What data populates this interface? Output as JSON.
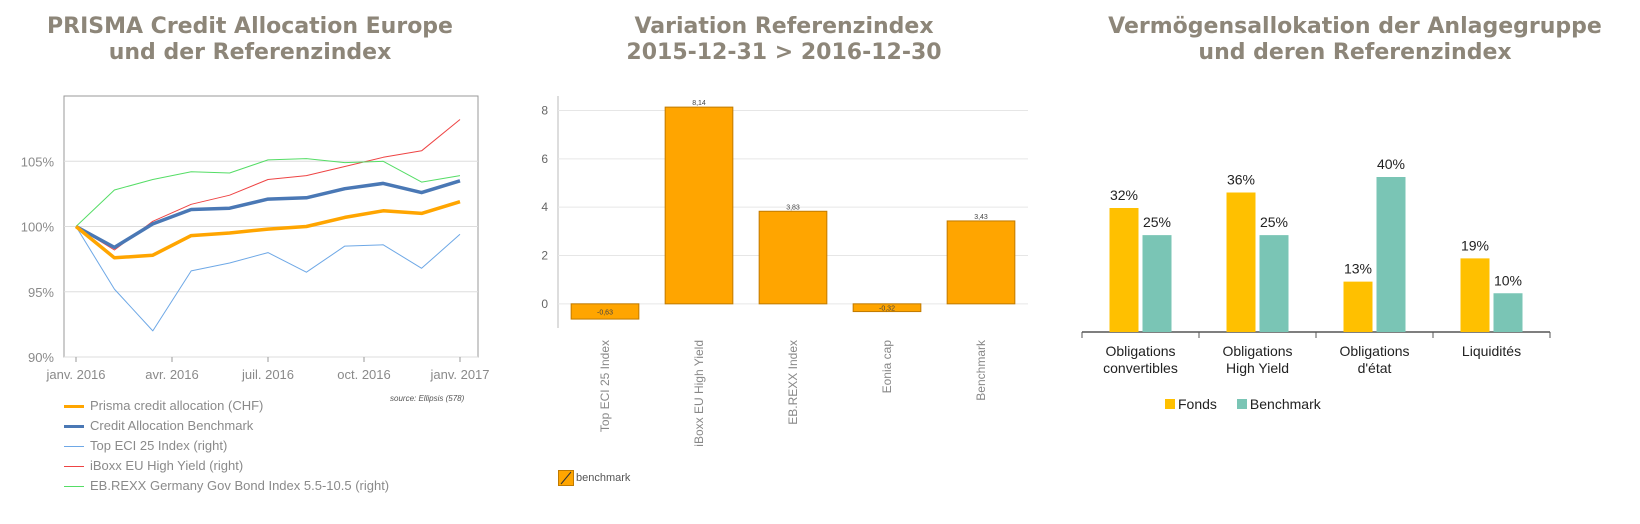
{
  "panel1": {
    "title": "PRISMA Credit Allocation Europe\nund der Referenzindex",
    "source": "source: Ellipsis (578)",
    "legend": [
      {
        "label": "Prisma credit allocation (CHF)",
        "color": "#ffa500"
      },
      {
        "label": "Credit Allocation Benchmark",
        "color": "#4a78b5"
      },
      {
        "label": "Top ECI 25 Index (right)",
        "color": "#6ea8e6"
      },
      {
        "label": "iBoxx EU High Yield (right)",
        "color": "#ee4444"
      },
      {
        "label": "EB.REXX Germany Gov Bond Index 5.5-10.5 (right)",
        "color": "#55dd66"
      }
    ]
  },
  "panel2": {
    "title": "Variation Referenzindex\n2015-12-31 > 2016-12-30",
    "legend_label": "benchmark"
  },
  "panel3": {
    "title": "Vermögensallokation der Anlagegruppe\nund deren Referenzindex",
    "legend": [
      {
        "label": "Fonds",
        "color": "#ffc000"
      },
      {
        "label": "Benchmark",
        "color": "#7ac5b5"
      }
    ]
  },
  "chart_data": [
    {
      "type": "line",
      "x_ticks": [
        "janv. 2016",
        "avr. 2016",
        "juil. 2016",
        "oct. 2016",
        "janv. 2017"
      ],
      "y_ticks": [
        "90%",
        "95%",
        "100%",
        "105%"
      ],
      "ylim": [
        90,
        110
      ],
      "x": [
        0,
        10,
        20,
        30,
        40,
        50,
        60,
        70,
        80,
        90,
        100
      ],
      "series": [
        {
          "name": "Prisma credit allocation (CHF)",
          "color": "#ffa500",
          "values": [
            100,
            97.6,
            97.8,
            99.3,
            99.5,
            99.8,
            100.0,
            100.7,
            101.2,
            101.0,
            101.9
          ]
        },
        {
          "name": "Credit Allocation Benchmark",
          "color": "#4a78b5",
          "values": [
            100,
            98.4,
            100.2,
            101.3,
            101.4,
            102.1,
            102.2,
            102.9,
            103.3,
            102.6,
            103.5
          ]
        },
        {
          "name": "Top ECI 25 Index (right)",
          "color": "#6ea8e6",
          "values": [
            100,
            95.2,
            92.0,
            96.6,
            97.2,
            98.0,
            96.5,
            98.5,
            98.6,
            96.8,
            99.4
          ]
        },
        {
          "name": "iBoxx EU High Yield (right)",
          "color": "#ee4444",
          "values": [
            100,
            98.2,
            100.4,
            101.7,
            102.4,
            103.6,
            103.9,
            104.6,
            105.3,
            105.8,
            108.2
          ]
        },
        {
          "name": "EB.REXX Germany Gov Bond Index 5.5-10.5 (right)",
          "color": "#55dd66",
          "values": [
            100,
            102.8,
            103.6,
            104.2,
            104.1,
            105.1,
            105.2,
            104.9,
            105.0,
            103.4,
            103.9
          ]
        }
      ]
    },
    {
      "type": "bar",
      "categories": [
        "Top ECI 25 Index",
        "iBoxx EU High Yield",
        "EB.REXX Index",
        "Eonia cap",
        "Benchmark"
      ],
      "values": [
        -0.63,
        8.14,
        3.83,
        -0.32,
        3.43
      ],
      "value_labels": [
        "-0,63",
        "8,14",
        "3,83",
        "-0,32",
        "3,43"
      ],
      "y_ticks": [
        "0",
        "2",
        "4",
        "6",
        "8"
      ],
      "ylim": [
        -1,
        8.6
      ],
      "series_name": "benchmark",
      "color": "#ffa500"
    },
    {
      "type": "bar",
      "categories": [
        "Obligations\nconvertibles",
        "Obligations\nHigh Yield",
        "Obligations\nd'état",
        "Liquidités"
      ],
      "series": [
        {
          "name": "Fonds",
          "color": "#ffc000",
          "values": [
            32,
            36,
            13,
            19
          ],
          "labels": [
            "32%",
            "36%",
            "13%",
            "19%"
          ]
        },
        {
          "name": "Benchmark",
          "color": "#7ac5b5",
          "values": [
            25,
            25,
            40,
            10
          ],
          "labels": [
            "25%",
            "25%",
            "40%",
            "10%"
          ]
        }
      ],
      "ylim": [
        0,
        40
      ]
    }
  ]
}
